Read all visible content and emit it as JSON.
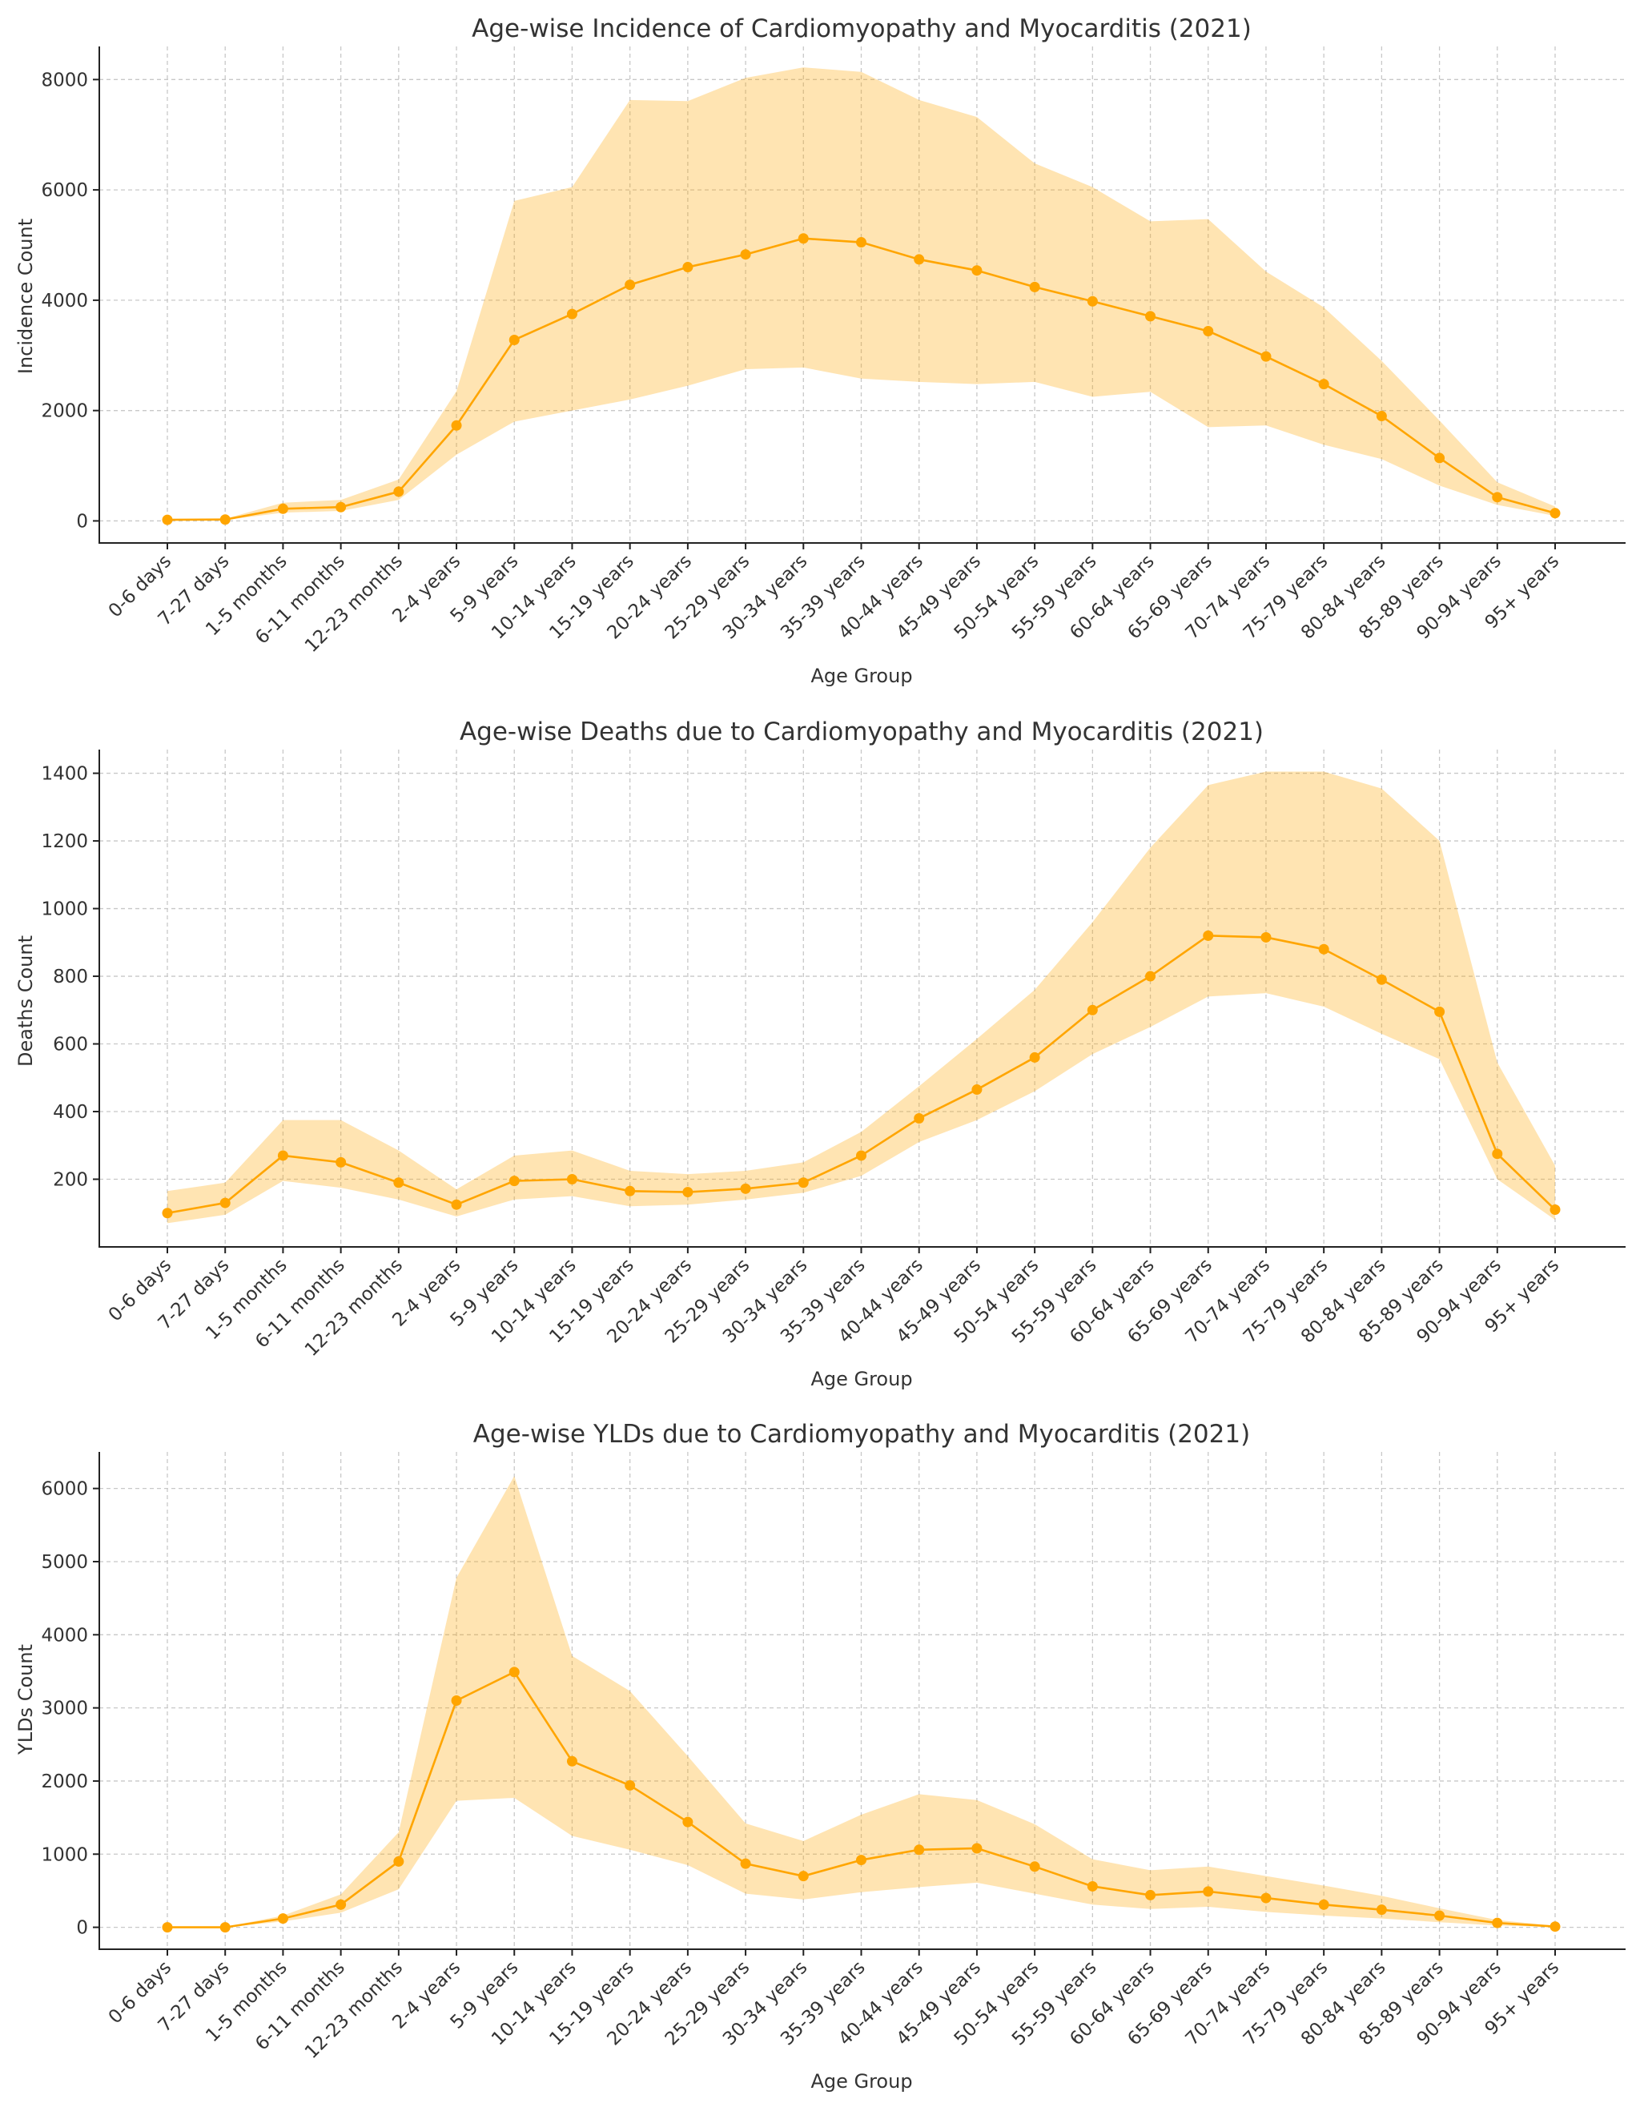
{
  "chart_data": [
    {
      "type": "line",
      "title": "Age-wise Incidence of Cardiomyopathy and Myocarditis (2021)",
      "xlabel": "Age Group",
      "ylabel": "Incidence Count",
      "ylim": [
        -400,
        8600
      ],
      "yticks": [
        0,
        2000,
        4000,
        6000,
        8000
      ],
      "grid": true,
      "colors": {
        "line": "#FFA500",
        "band": "#FFA500"
      },
      "categories": [
        "0-6 days",
        "7-27 days",
        "1-5 months",
        "6-11 months",
        "12-23 months",
        "2-4 years",
        "5-9 years",
        "10-14 years",
        "15-19 years",
        "20-24 years",
        "25-29 years",
        "30-34 years",
        "35-39 years",
        "40-44 years",
        "45-49 years",
        "50-54 years",
        "55-59 years",
        "60-64 years",
        "65-69 years",
        "70-74 years",
        "75-79 years",
        "80-84 years",
        "85-89 years",
        "90-94 years",
        "95+ years"
      ],
      "series": [
        {
          "name": "Incidence",
          "values": [
            20,
            25,
            220,
            250,
            530,
            1730,
            3280,
            3750,
            4280,
            4600,
            4830,
            5120,
            5050,
            4740,
            4540,
            4240,
            3980,
            3710,
            3440,
            2980,
            2480,
            1900,
            1140,
            430,
            140
          ]
        }
      ],
      "band": {
        "lower": [
          10,
          15,
          150,
          180,
          380,
          1200,
          1800,
          2000,
          2200,
          2450,
          2750,
          2780,
          2580,
          2520,
          2480,
          2520,
          2250,
          2340,
          1700,
          1730,
          1380,
          1120,
          640,
          290,
          90
        ],
        "upper": [
          30,
          40,
          330,
          380,
          750,
          2350,
          5800,
          6050,
          7630,
          7610,
          8030,
          8220,
          8140,
          7630,
          7320,
          6480,
          6050,
          5430,
          5470,
          4520,
          3870,
          2900,
          1820,
          700,
          260
        ]
      }
    },
    {
      "type": "line",
      "title": "Age-wise Deaths due to Cardiomyopathy and Myocarditis (2021)",
      "xlabel": "Age Group",
      "ylabel": "Deaths Count",
      "ylim": [
        0,
        1470
      ],
      "yticks": [
        200,
        400,
        600,
        800,
        1000,
        1200,
        1400
      ],
      "grid": true,
      "colors": {
        "line": "#FFA500",
        "band": "#FFA500"
      },
      "categories": [
        "0-6 days",
        "7-27 days",
        "1-5 months",
        "6-11 months",
        "12-23 months",
        "2-4 years",
        "5-9 years",
        "10-14 years",
        "15-19 years",
        "20-24 years",
        "25-29 years",
        "30-34 years",
        "35-39 years",
        "40-44 years",
        "45-49 years",
        "50-54 years",
        "55-59 years",
        "60-64 years",
        "65-69 years",
        "70-74 years",
        "75-79 years",
        "80-84 years",
        "85-89 years",
        "90-94 years",
        "95+ years"
      ],
      "series": [
        {
          "name": "Deaths",
          "values": [
            100,
            130,
            270,
            250,
            190,
            125,
            195,
            200,
            165,
            162,
            172,
            190,
            270,
            380,
            465,
            560,
            700,
            800,
            920,
            915,
            880,
            790,
            695,
            275,
            110
          ]
        }
      ],
      "band": {
        "lower": [
          70,
          95,
          195,
          175,
          140,
          90,
          140,
          150,
          120,
          125,
          140,
          160,
          210,
          310,
          375,
          460,
          570,
          650,
          740,
          750,
          710,
          630,
          555,
          200,
          80
        ],
        "upper": [
          165,
          190,
          375,
          375,
          285,
          170,
          270,
          285,
          225,
          215,
          225,
          250,
          340,
          475,
          615,
          760,
          960,
          1180,
          1365,
          1405,
          1405,
          1355,
          1200,
          545,
          240
        ]
      }
    },
    {
      "type": "line",
      "title": "Age-wise YLDs due to Cardiomyopathy and Myocarditis (2021)",
      "xlabel": "Age Group",
      "ylabel": "YLDs Count",
      "ylim": [
        -300,
        6500
      ],
      "yticks": [
        0,
        1000,
        2000,
        3000,
        4000,
        5000,
        6000
      ],
      "grid": true,
      "colors": {
        "line": "#FFA500",
        "band": "#FFA500"
      },
      "categories": [
        "0-6 days",
        "7-27 days",
        "1-5 months",
        "6-11 months",
        "12-23 months",
        "2-4 years",
        "5-9 years",
        "10-14 years",
        "15-19 years",
        "20-24 years",
        "25-29 years",
        "30-34 years",
        "35-39 years",
        "40-44 years",
        "45-49 years",
        "50-54 years",
        "55-59 years",
        "60-64 years",
        "65-69 years",
        "70-74 years",
        "75-79 years",
        "80-84 years",
        "85-89 years",
        "90-94 years",
        "95+ years"
      ],
      "series": [
        {
          "name": "YLDs",
          "values": [
            0,
            0,
            120,
            310,
            900,
            3100,
            3490,
            2270,
            1940,
            1440,
            870,
            700,
            920,
            1060,
            1080,
            830,
            560,
            440,
            490,
            400,
            310,
            240,
            160,
            60,
            10
          ]
        }
      ],
      "band": {
        "lower": [
          0,
          0,
          80,
          200,
          520,
          1730,
          1770,
          1250,
          1060,
          850,
          460,
          380,
          480,
          550,
          610,
          460,
          310,
          250,
          280,
          210,
          160,
          120,
          70,
          25,
          5
        ],
        "upper": [
          0,
          5,
          160,
          450,
          1300,
          4780,
          6170,
          3710,
          3230,
          2340,
          1420,
          1180,
          1540,
          1820,
          1740,
          1410,
          930,
          780,
          830,
          700,
          570,
          430,
          260,
          100,
          20
        ]
      }
    }
  ]
}
